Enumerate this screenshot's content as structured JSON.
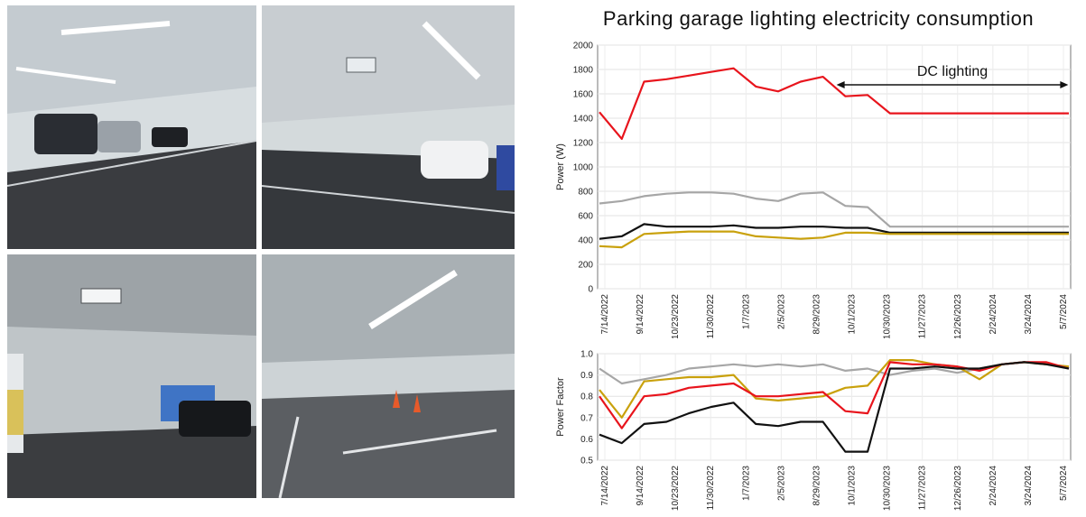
{
  "title": "Parking garage lighting electricity consumption",
  "photos": [
    {
      "name": "garage-photo-cars-left"
    },
    {
      "name": "garage-photo-exit-sign"
    },
    {
      "name": "garage-photo-corridor"
    },
    {
      "name": "garage-photo-cones"
    }
  ],
  "colors": {
    "red": "#e8141c",
    "gray": "#a6a6a6",
    "black": "#111111",
    "gold": "#c9a10c"
  },
  "chart_data": [
    {
      "type": "line",
      "title": "Parking garage lighting electricity consumption",
      "ylabel": "Power (W)",
      "xlabel": "",
      "ylim": [
        0,
        2000
      ],
      "yticks": [
        0,
        200,
        400,
        600,
        800,
        1000,
        1200,
        1400,
        1600,
        1800,
        2000
      ],
      "xticks": [
        "7/14/2022",
        "9/14/2022",
        "10/23/2022",
        "11/30/2022",
        "1/7/2023",
        "2/5/2023",
        "8/29/2023",
        "10/1/2023",
        "10/30/2023",
        "11/27/2023",
        "12/26/2023",
        "2/24/2024",
        "3/24/2024",
        "5/7/2024"
      ],
      "annotation": "DC lighting",
      "grid": true,
      "series": [
        {
          "color": "#e8141c",
          "values": [
            1450,
            1230,
            1700,
            1720,
            1750,
            1780,
            1810,
            1660,
            1620,
            1700,
            1740,
            1580,
            1590,
            1440,
            1440,
            1440,
            1440,
            1440,
            1440,
            1440,
            1440,
            1440
          ]
        },
        {
          "color": "#a6a6a6",
          "values": [
            700,
            720,
            760,
            780,
            790,
            790,
            780,
            740,
            720,
            780,
            790,
            680,
            670,
            510,
            510,
            510,
            510,
            510,
            510,
            510,
            510,
            510
          ]
        },
        {
          "color": "#111111",
          "values": [
            410,
            430,
            530,
            510,
            510,
            510,
            520,
            500,
            500,
            510,
            510,
            500,
            500,
            460,
            460,
            460,
            460,
            460,
            460,
            460,
            460,
            460
          ]
        },
        {
          "color": "#c9a10c",
          "values": [
            350,
            340,
            450,
            460,
            470,
            470,
            470,
            430,
            420,
            410,
            420,
            460,
            460,
            450,
            450,
            450,
            450,
            450,
            450,
            450,
            450,
            450
          ]
        }
      ]
    },
    {
      "type": "line",
      "ylabel": "Power Factor",
      "xlabel": "",
      "ylim": [
        0.5,
        1.0
      ],
      "yticks": [
        0.5,
        0.6,
        0.7,
        0.8,
        0.9,
        1.0
      ],
      "xticks": [
        "7/14/2022",
        "9/14/2022",
        "10/23/2022",
        "11/30/2022",
        "1/7/2023",
        "2/5/2023",
        "8/29/2023",
        "10/1/2023",
        "10/30/2023",
        "11/27/2023",
        "12/26/2023",
        "2/24/2024",
        "3/24/2024",
        "5/7/2024"
      ],
      "grid": true,
      "series": [
        {
          "color": "#a6a6a6",
          "values": [
            0.93,
            0.86,
            0.88,
            0.9,
            0.93,
            0.94,
            0.95,
            0.94,
            0.95,
            0.94,
            0.95,
            0.92,
            0.93,
            0.9,
            0.92,
            0.93,
            0.91,
            0.93,
            0.95,
            0.96,
            0.95,
            0.94
          ]
        },
        {
          "color": "#c9a10c",
          "values": [
            0.83,
            0.7,
            0.87,
            0.88,
            0.89,
            0.89,
            0.9,
            0.79,
            0.78,
            0.79,
            0.8,
            0.84,
            0.85,
            0.97,
            0.97,
            0.95,
            0.94,
            0.88,
            0.95,
            0.96,
            0.95,
            0.94
          ]
        },
        {
          "color": "#e8141c",
          "values": [
            0.8,
            0.65,
            0.8,
            0.81,
            0.84,
            0.85,
            0.86,
            0.8,
            0.8,
            0.81,
            0.82,
            0.73,
            0.72,
            0.96,
            0.95,
            0.95,
            0.94,
            0.92,
            0.95,
            0.96,
            0.96,
            0.93
          ]
        },
        {
          "color": "#111111",
          "values": [
            0.62,
            0.58,
            0.67,
            0.68,
            0.72,
            0.75,
            0.77,
            0.67,
            0.66,
            0.68,
            0.68,
            0.54,
            0.54,
            0.93,
            0.93,
            0.94,
            0.93,
            0.93,
            0.95,
            0.96,
            0.95,
            0.93
          ]
        }
      ]
    }
  ]
}
